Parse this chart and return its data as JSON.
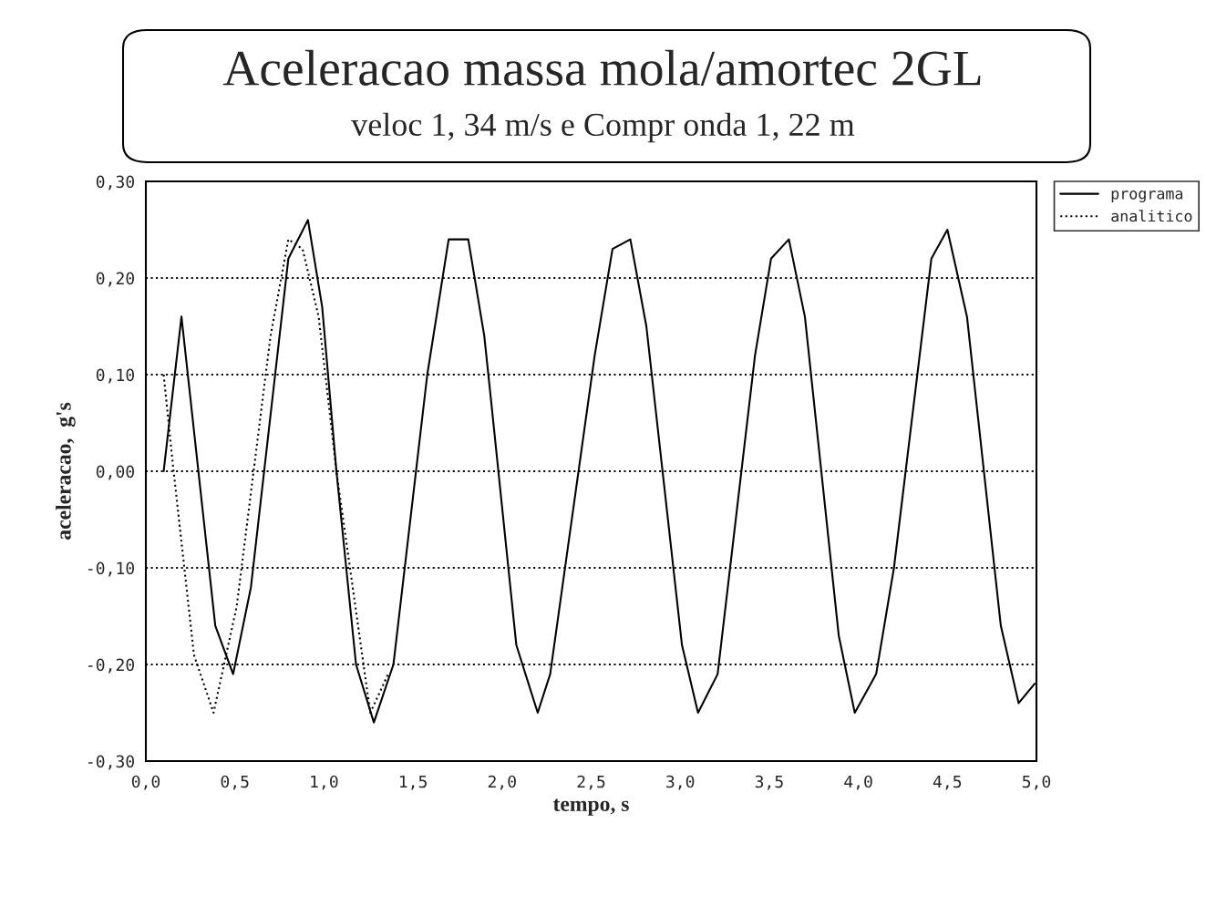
{
  "chart_data": {
    "type": "line",
    "title": "Aceleracao massa mola/amortec 2GL",
    "subtitle": "veloc 1, 34 m/s e Compr onda 1, 22 m",
    "xlabel": "tempo, s",
    "ylabel": "aceleracao,  g's",
    "xlim": [
      0,
      5
    ],
    "xticks": [
      {
        "value": 0,
        "label": "0,0"
      },
      {
        "value": 0.5,
        "label": "0,5"
      },
      {
        "value": 1,
        "label": "1,0"
      },
      {
        "value": 1.5,
        "label": "1,5"
      },
      {
        "value": 2,
        "label": "2,0"
      },
      {
        "value": 2.5,
        "label": "2,5"
      },
      {
        "value": 3,
        "label": "3,0"
      },
      {
        "value": 3.5,
        "label": "3,5"
      },
      {
        "value": 4,
        "label": "4,0"
      },
      {
        "value": 4.5,
        "label": "4,5"
      },
      {
        "value": 5,
        "label": "5,0"
      }
    ],
    "ylim": [
      -0.3,
      0.3
    ],
    "yticks": [
      {
        "value": -0.3,
        "label": "-0,30"
      },
      {
        "value": -0.2,
        "label": "-0,20"
      },
      {
        "value": -0.1,
        "label": "-0,10"
      },
      {
        "value": 0,
        "label": "0,00"
      },
      {
        "value": 0.1,
        "label": "0,10"
      },
      {
        "value": 0.2,
        "label": "0,20"
      },
      {
        "value": 0.3,
        "label": "0,30"
      }
    ],
    "grid": "y",
    "legend": "top right",
    "series": [
      {
        "name": "programa",
        "color": "#000000",
        "line_style": "solid",
        "x": [
          0.1,
          0.2,
          0.39,
          0.49,
          0.59,
          0.8,
          0.91,
          0.99,
          1.07,
          1.18,
          1.28,
          1.39,
          1.58,
          1.7,
          1.81,
          1.9,
          1.94,
          2.08,
          2.2,
          2.27,
          2.52,
          2.62,
          2.72,
          2.81,
          3.01,
          3.1,
          3.21,
          3.42,
          3.51,
          3.61,
          3.7,
          3.89,
          3.98,
          4.1,
          4.2,
          4.41,
          4.5,
          4.61,
          4.8,
          4.9,
          4.99
        ],
        "values": [
          0.0,
          0.16,
          -0.16,
          -0.21,
          -0.12,
          0.22,
          0.26,
          0.17,
          0.0,
          -0.2,
          -0.26,
          -0.2,
          0.1,
          0.24,
          0.24,
          0.14,
          0.07,
          -0.18,
          -0.25,
          -0.21,
          0.12,
          0.23,
          0.24,
          0.15,
          -0.18,
          -0.25,
          -0.21,
          0.12,
          0.22,
          0.24,
          0.16,
          -0.17,
          -0.25,
          -0.21,
          -0.1,
          0.22,
          0.25,
          0.16,
          -0.16,
          -0.24,
          -0.22
        ]
      },
      {
        "name": "analitico",
        "color": "#000000",
        "line_style": "dotted",
        "x": [
          0.1,
          0.15,
          0.27,
          0.38,
          0.51,
          0.7,
          0.8,
          0.88,
          0.97,
          1.07,
          1.26,
          1.36
        ],
        "values": [
          0.1,
          0.01,
          -0.19,
          -0.25,
          -0.14,
          0.14,
          0.24,
          0.23,
          0.16,
          0.0,
          -0.25,
          -0.21
        ]
      }
    ]
  }
}
